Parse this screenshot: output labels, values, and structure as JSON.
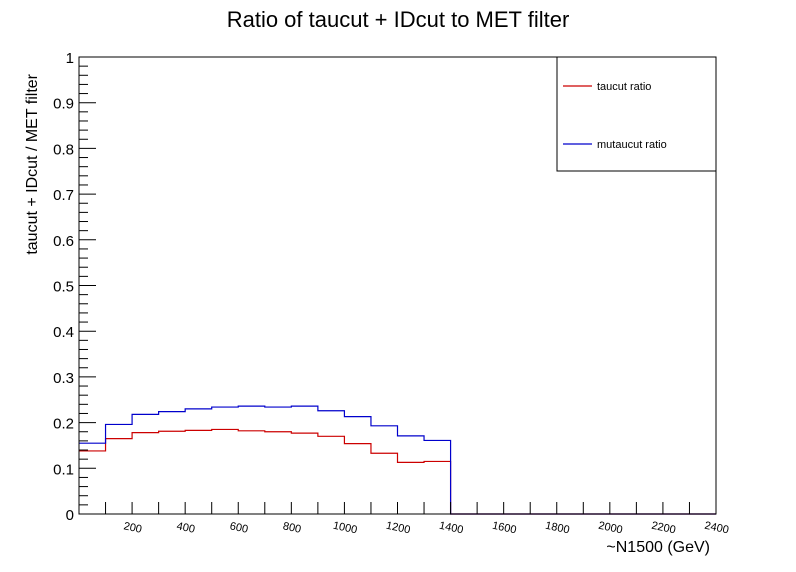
{
  "chart_data": {
    "type": "line",
    "title": "Ratio of taucut + IDcut to MET filter",
    "xlabel": "~N1500 (GeV)",
    "ylabel": "taucut + IDcut / MET filter",
    "xlim": [
      0,
      2400
    ],
    "ylim": [
      0,
      1
    ],
    "x_bin_edges": [
      0,
      100,
      200,
      300,
      400,
      500,
      600,
      700,
      800,
      900,
      1000,
      1100,
      1200,
      1300,
      1400,
      1500,
      1600,
      1700,
      1800,
      1900,
      2000,
      2100,
      2200,
      2300,
      2400
    ],
    "x_tick_labels": [
      "200",
      "400",
      "600",
      "800",
      "1000",
      "1200",
      "1400",
      "1600",
      "1800",
      "2000",
      "2200",
      "2400"
    ],
    "x_tick_values": [
      200,
      400,
      600,
      800,
      1000,
      1200,
      1400,
      1600,
      1800,
      2000,
      2200,
      2400
    ],
    "y_tick_labels": [
      "0",
      "0.1",
      "0.2",
      "0.3",
      "0.4",
      "0.5",
      "0.6",
      "0.7",
      "0.8",
      "0.9",
      "1"
    ],
    "y_tick_values": [
      0,
      0.1,
      0.2,
      0.3,
      0.4,
      0.5,
      0.6,
      0.7,
      0.8,
      0.9,
      1.0
    ],
    "grid": false,
    "legend_position": "top-right",
    "series": [
      {
        "name": "taucut ratio",
        "color": "#cc0000",
        "values": [
          0.138,
          0.165,
          0.178,
          0.181,
          0.183,
          0.185,
          0.182,
          0.18,
          0.177,
          0.17,
          0.154,
          0.133,
          0.113,
          0.115,
          0,
          0,
          0,
          0,
          0,
          0,
          0,
          0,
          0,
          0
        ]
      },
      {
        "name": "mutaucut ratio",
        "color": "#0000cc",
        "values": [
          0.155,
          0.196,
          0.218,
          0.224,
          0.23,
          0.234,
          0.236,
          0.234,
          0.236,
          0.226,
          0.213,
          0.193,
          0.171,
          0.161,
          0,
          0,
          0,
          0,
          0,
          0,
          0,
          0,
          0,
          0
        ]
      }
    ]
  }
}
